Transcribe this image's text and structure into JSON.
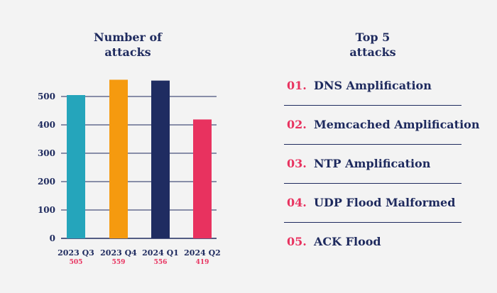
{
  "chart_data": {
    "type": "bar",
    "title": "Number of attacks",
    "title_lines": [
      "Number of",
      "attacks"
    ],
    "categories": [
      "2023 Q3",
      "2023 Q4",
      "2024 Q1",
      "2024 Q2"
    ],
    "values": [
      505,
      559,
      556,
      419
    ],
    "value_labels": [
      "505",
      "559",
      "556",
      "419"
    ],
    "colors": [
      "#25a5bb",
      "#f59a0f",
      "#1f2c61",
      "#e8325f"
    ],
    "yticks": [
      0,
      100,
      200,
      300,
      400,
      500
    ],
    "ylim": [
      0,
      560
    ],
    "grid": true,
    "xlabel": "",
    "ylabel": ""
  },
  "top_attacks": {
    "title_lines": [
      "Top 5",
      "attacks"
    ],
    "items": [
      {
        "num": "01.",
        "name": "DNS Amplification"
      },
      {
        "num": "02.",
        "name": "Memcached Amplification"
      },
      {
        "num": "03.",
        "name": "NTP Amplification"
      },
      {
        "num": "04.",
        "name": "UDP Flood Malformed"
      },
      {
        "num": "05.",
        "name": "ACK Flood"
      }
    ]
  },
  "colors": {
    "navy": "#1e2a5e",
    "pink": "#e8325f",
    "background": "#f3f3f3"
  }
}
